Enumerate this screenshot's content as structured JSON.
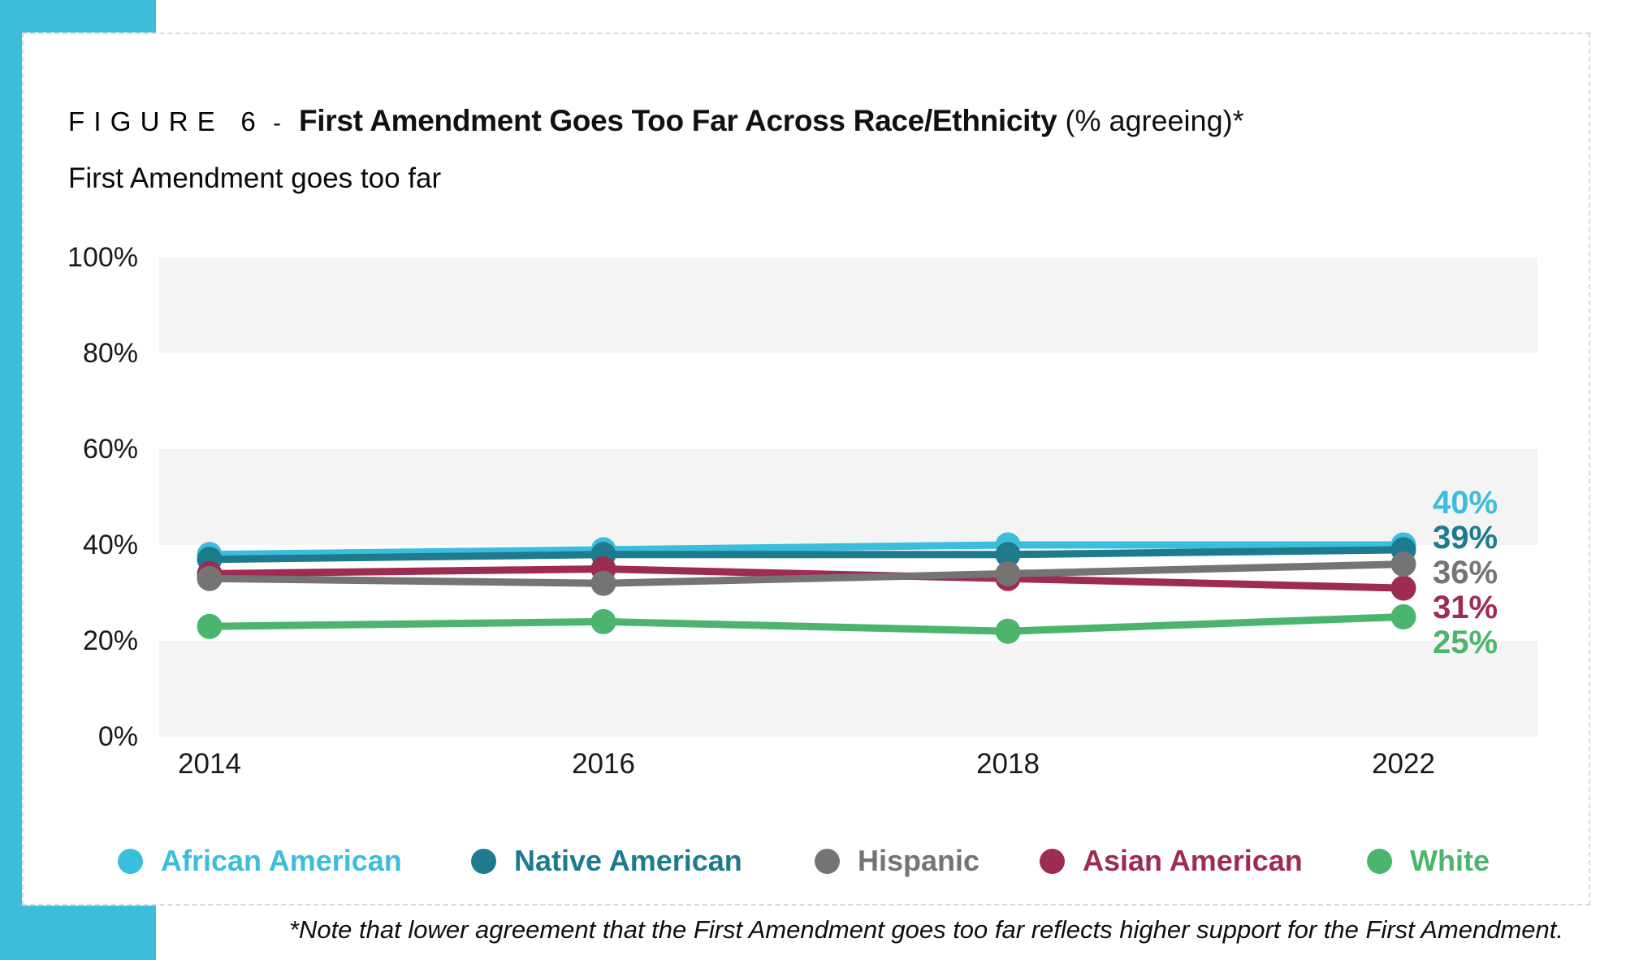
{
  "figure": {
    "label": "FIGURE 6",
    "separator": "-",
    "title_bold": "First Amendment Goes Too Far Across Race/Ethnicity",
    "title_suffix": "(% agreeing)*",
    "subtitle": "First Amendment goes too far",
    "footnote": "*Note that lower agreement that the First Amendment goes too far reflects higher support for the First Amendment."
  },
  "colors": {
    "accent_cyan": "#3CBDDB",
    "band_gray": "#F4F4F4",
    "axis_text": "#1A1A1A"
  },
  "chart_data": {
    "type": "line",
    "x": [
      2014,
      2016,
      2018,
      2022
    ],
    "xticklabels": [
      "2014",
      "2016",
      "2018",
      "2022"
    ],
    "yticks": [
      "100%",
      "80%",
      "60%",
      "40%",
      "20%",
      "0%"
    ],
    "ylim": [
      0,
      100
    ],
    "grid": "banded-stripes-every-20pct",
    "legend_position": "bottom",
    "series": [
      {
        "name": "African American",
        "color": "#3CBDDB",
        "values": [
          38,
          39,
          40,
          40
        ],
        "end_label": "40%"
      },
      {
        "name": "Native American",
        "color": "#1E7B8E",
        "values": [
          37,
          38,
          38,
          39
        ],
        "end_label": "39%"
      },
      {
        "name": "Asian American",
        "color": "#9E2C52",
        "values": [
          34,
          35,
          33,
          31
        ],
        "end_label": "31%"
      },
      {
        "name": "Hispanic",
        "color": "#757374",
        "values": [
          33,
          32,
          34,
          36
        ],
        "end_label": "36%"
      },
      {
        "name": "White",
        "color": "#4CB56D",
        "values": [
          23,
          24,
          22,
          25
        ],
        "end_label": "25%"
      }
    ],
    "legend_order": [
      "African American",
      "Native American",
      "Hispanic",
      "Asian American",
      "White"
    ]
  }
}
